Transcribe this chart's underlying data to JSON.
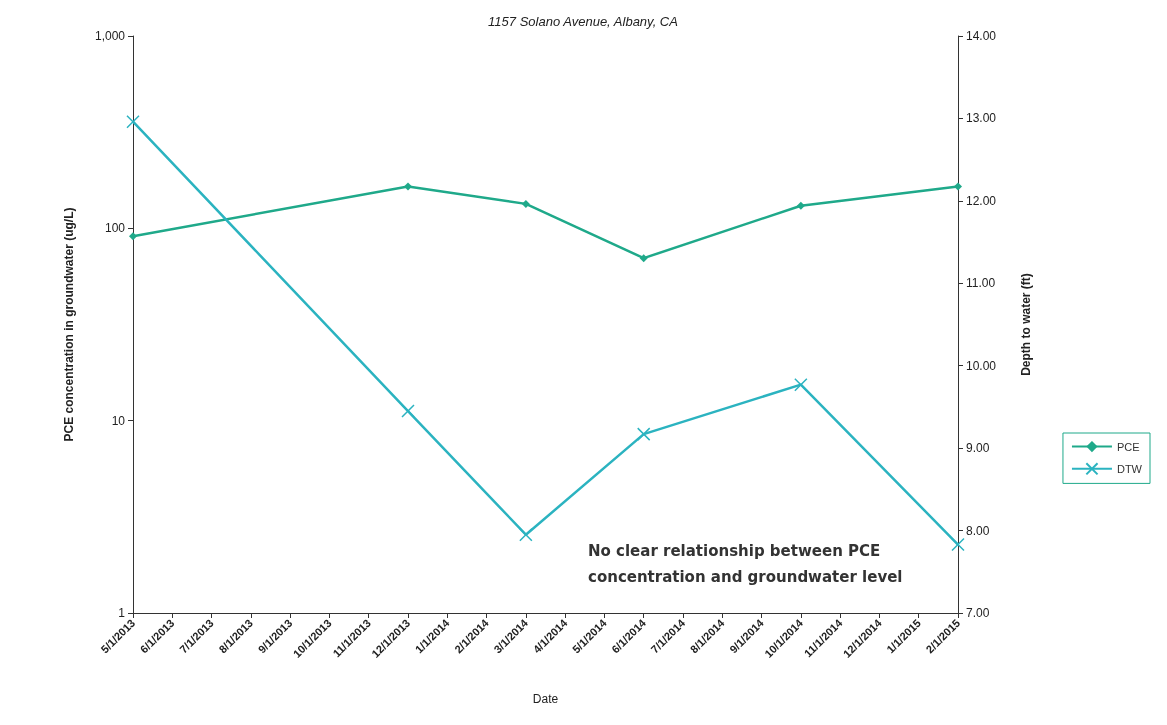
{
  "chart_data": {
    "type": "line",
    "title": "1157 Solano Avenue, Albany, CA",
    "xlabel": "Date",
    "ylabel": "PCE concentration in groundwater (ug/L)",
    "y2label": "Depth to water (ft)",
    "categories": [
      "5/1/2013",
      "6/1/2013",
      "7/1/2013",
      "8/1/2013",
      "9/1/2013",
      "10/1/2013",
      "11/1/2013",
      "12/1/2013",
      "1/1/2014",
      "2/1/2014",
      "3/1/2014",
      "4/1/2014",
      "5/1/2014",
      "6/1/2014",
      "7/1/2014",
      "8/1/2014",
      "9/1/2014",
      "10/1/2014",
      "11/1/2014",
      "12/1/2014",
      "1/1/2015",
      "2/1/2015"
    ],
    "series": [
      {
        "name": "PCE",
        "color": "#1fa98a",
        "marker": "diamond",
        "values": [
          91,
          null,
          null,
          null,
          null,
          null,
          null,
          165,
          null,
          null,
          134,
          null,
          null,
          70,
          null,
          null,
          null,
          131,
          null,
          null,
          null,
          165
        ]
      },
      {
        "name": "DTW",
        "color": "#2bb3c0",
        "marker": "cross",
        "axis": "y2",
        "values": [
          12.96,
          null,
          null,
          null,
          null,
          null,
          null,
          9.45,
          null,
          null,
          7.95,
          null,
          null,
          9.17,
          null,
          null,
          null,
          9.77,
          null,
          null,
          null,
          7.83
        ]
      }
    ],
    "log": "y",
    "ylim": [
      1,
      1000
    ],
    "yticks": [
      1,
      10,
      100,
      {
        "value": 1000,
        "label": "1,000"
      }
    ],
    "y2lim": [
      7,
      14
    ],
    "y2ticks": [
      {
        "value": 7,
        "label": "7.00"
      },
      {
        "value": 8,
        "label": "8.00"
      },
      {
        "value": 9,
        "label": "9.00"
      },
      {
        "value": 10,
        "label": "10.00"
      },
      {
        "value": 11,
        "label": "11.00"
      },
      {
        "value": 12,
        "label": "12.00"
      },
      {
        "value": 13,
        "label": "13.00"
      },
      {
        "value": 14,
        "label": "14.00"
      }
    ],
    "grid": false,
    "legend": "right",
    "annotations": [
      "No clear relationship between PCE\nconcentration and groundwater level"
    ]
  }
}
